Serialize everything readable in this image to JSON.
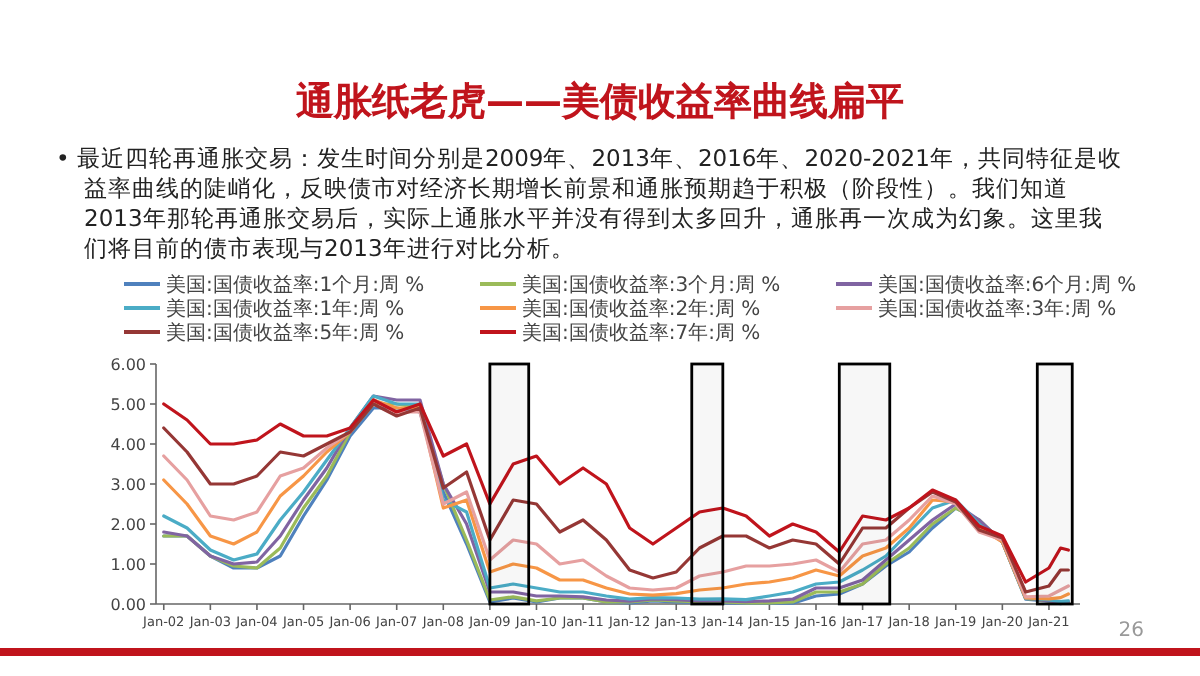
{
  "chart_data": {
    "type": "line",
    "title": "通胀纸老虎——美债收益率曲线扁平",
    "annotations": [
      "•  最近四轮再通胀交易：发生时间分别是2009年、2013年、2016年、2020-2021年，共同特征是收益率曲线的陡峭化，反映债市对经济长期增长前景和通胀预期趋于积极（阶段性）。我们知道2013年那轮再通胀交易后，实际上通胀水平并没有得到太多回升，通胀再一次成为幻象。这里我们将目前的债市表现与2013年进行对比分析。",
      "26"
    ],
    "x": [
      "2002-01",
      "2002-07",
      "2003-01",
      "2003-07",
      "2004-01",
      "2004-07",
      "2005-01",
      "2005-07",
      "2006-01",
      "2006-07",
      "2007-01",
      "2007-07",
      "2008-01",
      "2008-07",
      "2009-01",
      "2009-07",
      "2010-01",
      "2010-07",
      "2011-01",
      "2011-07",
      "2012-01",
      "2012-07",
      "2013-01",
      "2013-07",
      "2014-01",
      "2014-07",
      "2015-01",
      "2015-07",
      "2016-01",
      "2016-07",
      "2017-01",
      "2017-07",
      "2018-01",
      "2018-07",
      "2019-01",
      "2019-07",
      "2020-01",
      "2020-07",
      "2021-01",
      "2021-04",
      "2021-06"
    ],
    "series": [
      {
        "name": "美国:国债收益率:1个月:周 %",
        "color": "#4f81bd",
        "values": [
          1.7,
          1.7,
          1.2,
          0.9,
          0.9,
          1.2,
          2.2,
          3.1,
          4.2,
          4.9,
          4.9,
          4.8,
          2.8,
          1.5,
          0.05,
          0.15,
          0.05,
          0.15,
          0.15,
          0.05,
          0.03,
          0.08,
          0.05,
          0.04,
          0.03,
          0.02,
          0.02,
          0.02,
          0.2,
          0.25,
          0.5,
          0.95,
          1.3,
          1.9,
          2.4,
          2.1,
          1.55,
          0.12,
          0.07,
          0.01,
          0.04
        ]
      },
      {
        "name": "美国:国债收益率:3个月:周 %",
        "color": "#9bbb59",
        "values": [
          1.7,
          1.7,
          1.2,
          0.95,
          0.9,
          1.4,
          2.4,
          3.2,
          4.3,
          5.0,
          5.0,
          4.9,
          3.0,
          1.6,
          0.1,
          0.18,
          0.08,
          0.15,
          0.15,
          0.05,
          0.05,
          0.1,
          0.08,
          0.05,
          0.05,
          0.03,
          0.03,
          0.05,
          0.3,
          0.3,
          0.5,
          1.0,
          1.4,
          2.0,
          2.4,
          2.1,
          1.55,
          0.14,
          0.08,
          0.02,
          0.04
        ]
      },
      {
        "name": "美国:国债收益率:6个月:周 %",
        "color": "#8064a2",
        "values": [
          1.8,
          1.7,
          1.2,
          1.0,
          1.05,
          1.7,
          2.6,
          3.4,
          4.4,
          5.2,
          5.1,
          5.1,
          3.0,
          2.0,
          0.3,
          0.3,
          0.2,
          0.2,
          0.18,
          0.1,
          0.07,
          0.13,
          0.11,
          0.08,
          0.08,
          0.06,
          0.08,
          0.12,
          0.4,
          0.4,
          0.6,
          1.1,
          1.6,
          2.1,
          2.5,
          2.1,
          1.55,
          0.15,
          0.08,
          0.04,
          0.05
        ]
      },
      {
        "name": "美国:国债收益率:1年:周 %",
        "color": "#4bacc6",
        "values": [
          2.2,
          1.9,
          1.35,
          1.1,
          1.25,
          2.1,
          2.8,
          3.6,
          4.4,
          5.2,
          5.0,
          5.0,
          2.6,
          2.3,
          0.4,
          0.5,
          0.4,
          0.3,
          0.3,
          0.2,
          0.12,
          0.16,
          0.15,
          0.12,
          0.13,
          0.11,
          0.2,
          0.3,
          0.5,
          0.55,
          0.85,
          1.2,
          1.8,
          2.4,
          2.6,
          2.0,
          1.55,
          0.15,
          0.1,
          0.06,
          0.08
        ]
      },
      {
        "name": "美国:国债收益率:2年:周 %",
        "color": "#f79646",
        "values": [
          3.1,
          2.5,
          1.7,
          1.5,
          1.8,
          2.7,
          3.2,
          3.8,
          4.3,
          5.1,
          4.9,
          4.9,
          2.4,
          2.6,
          0.8,
          1.0,
          0.9,
          0.6,
          0.6,
          0.4,
          0.25,
          0.22,
          0.26,
          0.35,
          0.4,
          0.5,
          0.55,
          0.65,
          0.85,
          0.7,
          1.2,
          1.4,
          1.9,
          2.6,
          2.55,
          1.9,
          1.55,
          0.15,
          0.13,
          0.16,
          0.25
        ]
      },
      {
        "name": "美国:国债收益率:3年:周 %",
        "color": "#e6a0a0",
        "values": [
          3.7,
          3.1,
          2.2,
          2.1,
          2.3,
          3.2,
          3.4,
          3.9,
          4.3,
          5.1,
          4.8,
          4.8,
          2.5,
          2.8,
          1.1,
          1.6,
          1.5,
          1.0,
          1.1,
          0.7,
          0.4,
          0.35,
          0.4,
          0.7,
          0.8,
          0.95,
          0.95,
          1.0,
          1.1,
          0.8,
          1.5,
          1.6,
          2.1,
          2.7,
          2.5,
          1.8,
          1.6,
          0.18,
          0.2,
          0.35,
          0.45
        ]
      },
      {
        "name": "美国:国债收益率:5年:周 %",
        "color": "#953735",
        "values": [
          4.4,
          3.8,
          3.0,
          3.0,
          3.2,
          3.8,
          3.7,
          4.0,
          4.3,
          5.0,
          4.7,
          4.9,
          2.9,
          3.3,
          1.6,
          2.6,
          2.5,
          1.8,
          2.1,
          1.6,
          0.85,
          0.65,
          0.8,
          1.4,
          1.7,
          1.7,
          1.4,
          1.6,
          1.5,
          1.0,
          1.9,
          1.9,
          2.4,
          2.8,
          2.55,
          1.85,
          1.65,
          0.3,
          0.45,
          0.85,
          0.85
        ]
      },
      {
        "name": "美国:国债收益率:7年:周 %",
        "color": "#c0141c",
        "values": [
          5.0,
          4.6,
          4.0,
          4.0,
          4.1,
          4.5,
          4.2,
          4.2,
          4.4,
          5.1,
          4.8,
          5.0,
          3.7,
          4.0,
          2.5,
          3.5,
          3.7,
          3.0,
          3.4,
          3.0,
          1.9,
          1.5,
          1.9,
          2.3,
          2.4,
          2.2,
          1.7,
          2.0,
          1.8,
          1.3,
          2.2,
          2.1,
          2.4,
          2.85,
          2.6,
          1.95,
          1.7,
          0.55,
          0.9,
          1.4,
          1.35
        ]
      }
    ],
    "xlim": [
      "2001-11",
      "2021-09"
    ],
    "xticks": [
      {
        "value": "2002-01",
        "label": "Jan-02"
      },
      {
        "value": "2003-01",
        "label": "Jan-03"
      },
      {
        "value": "2004-01",
        "label": "Jan-04"
      },
      {
        "value": "2005-01",
        "label": "Jan-05"
      },
      {
        "value": "2006-01",
        "label": "Jan-06"
      },
      {
        "value": "2007-01",
        "label": "Jan-07"
      },
      {
        "value": "2008-01",
        "label": "Jan-08"
      },
      {
        "value": "2009-01",
        "label": "Jan-09"
      },
      {
        "value": "2010-01",
        "label": "Jan-10"
      },
      {
        "value": "2011-01",
        "label": "Jan-11"
      },
      {
        "value": "2012-01",
        "label": "Jan-12"
      },
      {
        "value": "2013-01",
        "label": "Jan-13"
      },
      {
        "value": "2014-01",
        "label": "Jan-14"
      },
      {
        "value": "2015-01",
        "label": "Jan-15"
      },
      {
        "value": "2016-01",
        "label": "Jan-16"
      },
      {
        "value": "2017-01",
        "label": "Jan-17"
      },
      {
        "value": "2018-01",
        "label": "Jan-18"
      },
      {
        "value": "2019-01",
        "label": "Jan-19"
      },
      {
        "value": "2020-01",
        "label": "Jan-20"
      },
      {
        "value": "2021-01",
        "label": "Jan-21"
      }
    ],
    "ylim": [
      0,
      6
    ],
    "yticks": [
      {
        "value": 0,
        "label": "0.00"
      },
      {
        "value": 1,
        "label": "1.00"
      },
      {
        "value": 2,
        "label": "2.00"
      },
      {
        "value": 3,
        "label": "3.00"
      },
      {
        "value": 4,
        "label": "4.00"
      },
      {
        "value": 5,
        "label": "5.00"
      },
      {
        "value": 6,
        "label": "6.00"
      }
    ],
    "bands": [
      {
        "axis": "x",
        "from": "2009-01",
        "to": "2009-11",
        "color": "#000000"
      },
      {
        "axis": "x",
        "from": "2013-05",
        "to": "2014-01",
        "color": "#000000"
      },
      {
        "axis": "x",
        "from": "2016-07",
        "to": "2017-08",
        "color": "#000000"
      },
      {
        "axis": "x",
        "from": "2020-10",
        "to": "2021-07",
        "color": "#000000"
      }
    ],
    "legend": "top",
    "grid": false,
    "line_style": "solid"
  }
}
